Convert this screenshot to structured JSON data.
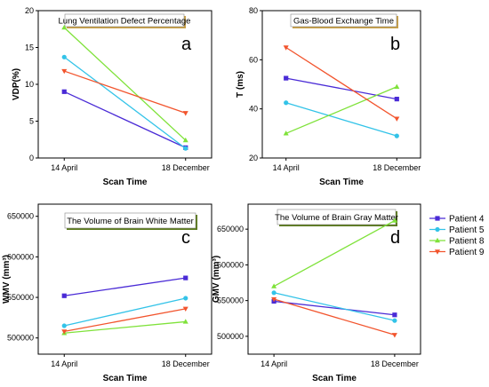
{
  "colors": {
    "Patient 4": "#4a2bd6",
    "Patient 5": "#33c3e8",
    "Patient 8": "#7fe23a",
    "Patient 9": "#f2542d",
    "title_box_border": "#c9a045",
    "title_box_border_dark": "#5a7a1a"
  },
  "legend": {
    "entries": [
      "Patient 4",
      "Patient 5",
      "Patient 8",
      "Patient 9"
    ],
    "placement": "right"
  },
  "chart_data": [
    {
      "type": "line",
      "panel": "a",
      "title": "Lung Ventilation Defect Percentage",
      "xlabel": "Scan Time",
      "ylabel": "VDP(%)",
      "categories": [
        "14 April",
        "18 December"
      ],
      "ylim": [
        0,
        20
      ],
      "yticks": [
        0,
        5,
        10,
        15,
        20
      ],
      "ytick_labels": [
        "0",
        "5",
        "10",
        "15",
        "20"
      ],
      "series": [
        {
          "name": "Patient 4",
          "values": [
            9.0,
            1.4
          ],
          "marker": "square"
        },
        {
          "name": "Patient 5",
          "values": [
            13.7,
            1.3
          ],
          "marker": "circle"
        },
        {
          "name": "Patient 8",
          "values": [
            17.7,
            2.4
          ],
          "marker": "triangle-up"
        },
        {
          "name": "Patient 9",
          "values": [
            11.8,
            6.1
          ],
          "marker": "triangle-down"
        }
      ]
    },
    {
      "type": "line",
      "panel": "b",
      "title": "Gas-Blood Exchange Time",
      "xlabel": "Scan Time",
      "ylabel": "T (ms)",
      "categories": [
        "14 April",
        "18 December"
      ],
      "ylim": [
        20,
        80
      ],
      "yticks": [
        20,
        40,
        60,
        80
      ],
      "ytick_labels": [
        "20",
        "40",
        "60",
        "80"
      ],
      "series": [
        {
          "name": "Patient 4",
          "values": [
            52.5,
            44.0
          ],
          "marker": "square"
        },
        {
          "name": "Patient 5",
          "values": [
            42.5,
            29.0
          ],
          "marker": "circle"
        },
        {
          "name": "Patient 8",
          "values": [
            30.0,
            49.0
          ],
          "marker": "triangle-up"
        },
        {
          "name": "Patient 9",
          "values": [
            65.0,
            36.0
          ],
          "marker": "triangle-down"
        }
      ]
    },
    {
      "type": "line",
      "panel": "c",
      "title": "The Volume of Brain White Matter",
      "xlabel": "Scan Time",
      "ylabel": "WMV (mm³)",
      "categories": [
        "14 April",
        "18 December"
      ],
      "ylim": [
        480000,
        665000
      ],
      "yticks": [
        500000,
        550000,
        600000,
        650000
      ],
      "ytick_labels": [
        "500000",
        "550000",
        "600000",
        "650000"
      ],
      "series": [
        {
          "name": "Patient 4",
          "values": [
            552000,
            574000
          ],
          "marker": "square"
        },
        {
          "name": "Patient 5",
          "values": [
            515000,
            549000
          ],
          "marker": "circle"
        },
        {
          "name": "Patient 8",
          "values": [
            506000,
            520000
          ],
          "marker": "triangle-up"
        },
        {
          "name": "Patient 9",
          "values": [
            508000,
            536000
          ],
          "marker": "triangle-down"
        }
      ]
    },
    {
      "type": "line",
      "panel": "d",
      "title": "The Volume of Brain Gray Matter",
      "xlabel": "Scan Time",
      "ylabel": "GMV (mm³)",
      "categories": [
        "14 April",
        "18 December"
      ],
      "ylim": [
        475000,
        685000
      ],
      "yticks": [
        500000,
        550000,
        600000,
        650000
      ],
      "ytick_labels": [
        "500000",
        "550000",
        "600000",
        "650000"
      ],
      "series": [
        {
          "name": "Patient 4",
          "values": [
            549000,
            530000
          ],
          "marker": "square"
        },
        {
          "name": "Patient 5",
          "values": [
            561000,
            522000
          ],
          "marker": "circle"
        },
        {
          "name": "Patient 8",
          "values": [
            570000,
            662000
          ],
          "marker": "triangle-up"
        },
        {
          "name": "Patient 9",
          "values": [
            552000,
            502000
          ],
          "marker": "triangle-down"
        }
      ]
    }
  ]
}
